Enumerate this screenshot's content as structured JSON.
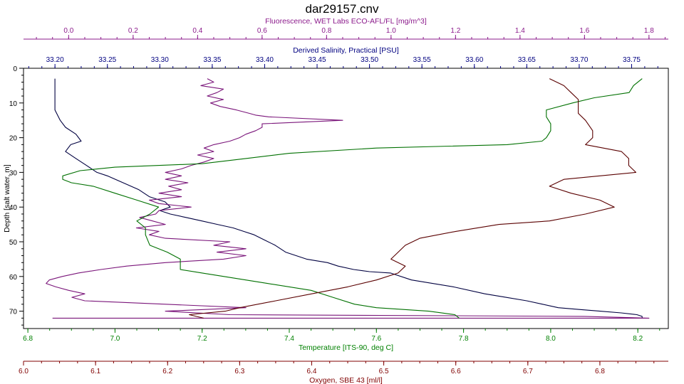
{
  "title": "dar29157.cnv",
  "chart_data": {
    "type": "line",
    "title": "dar29157.cnv",
    "grid": false,
    "y_axis": {
      "label": "Depth [salt water, m]",
      "range": [
        0,
        75
      ],
      "inverted": true,
      "ticks": [
        0,
        10,
        20,
        30,
        40,
        50,
        60,
        70
      ],
      "color": "#000000"
    },
    "x_axes": [
      {
        "id": "fluorescence",
        "label": "Fluorescence, WET Labs ECO-AFL/FL [mg/m^3]",
        "position": "top-outer",
        "range": [
          -0.14,
          1.86
        ],
        "ticks": [
          0.0,
          0.2,
          0.4,
          0.6,
          0.8,
          1.0,
          1.2,
          1.4,
          1.6,
          1.8
        ],
        "decimals": 1,
        "color": "#8b1a8b"
      },
      {
        "id": "salinity",
        "label": "Derived Salinity, Practical [PSU]",
        "position": "top-inner",
        "range": [
          33.17,
          33.785
        ],
        "ticks": [
          33.2,
          33.25,
          33.3,
          33.35,
          33.4,
          33.45,
          33.5,
          33.55,
          33.6,
          33.65,
          33.7,
          33.75
        ],
        "decimals": 2,
        "color": "#000080"
      },
      {
        "id": "temperature",
        "label": "Temperature [ITS-90, deg C]",
        "position": "bottom-inner",
        "range": [
          6.79,
          8.27
        ],
        "ticks": [
          6.8,
          7.0,
          7.2,
          7.4,
          7.6,
          7.8,
          8.0,
          8.2
        ],
        "decimals": 1,
        "color": "#008000"
      },
      {
        "id": "oxygen",
        "label": "Oxygen, SBE 43 [ml/l]",
        "position": "bottom-outer",
        "range": [
          6.0,
          6.895
        ],
        "ticks": [
          6.0,
          6.1,
          6.2,
          6.3,
          6.4,
          6.5,
          6.6,
          6.7,
          6.8
        ],
        "decimals": 1,
        "color": "#800000"
      }
    ],
    "series": [
      {
        "axis": "salinity",
        "color": "#000040",
        "points": [
          [
            33.2,
            3
          ],
          [
            33.2,
            8
          ],
          [
            33.2,
            12
          ],
          [
            33.205,
            15
          ],
          [
            33.21,
            17
          ],
          [
            33.22,
            19
          ],
          [
            33.225,
            21
          ],
          [
            33.215,
            22
          ],
          [
            33.21,
            24
          ],
          [
            33.22,
            26
          ],
          [
            33.23,
            28
          ],
          [
            33.24,
            30
          ],
          [
            33.25,
            31
          ],
          [
            33.265,
            33
          ],
          [
            33.28,
            35
          ],
          [
            33.29,
            37
          ],
          [
            33.305,
            38.5
          ],
          [
            33.31,
            40
          ],
          [
            33.3,
            41
          ],
          [
            33.31,
            42
          ],
          [
            33.325,
            43
          ],
          [
            33.34,
            44
          ],
          [
            33.355,
            45
          ],
          [
            33.37,
            46
          ],
          [
            33.38,
            47
          ],
          [
            33.39,
            48
          ],
          [
            33.4,
            49.5
          ],
          [
            33.41,
            51
          ],
          [
            33.42,
            53
          ],
          [
            33.44,
            55
          ],
          [
            33.46,
            56
          ],
          [
            33.47,
            57
          ],
          [
            33.485,
            58
          ],
          [
            33.5,
            58.6
          ],
          [
            33.52,
            59
          ],
          [
            33.54,
            61
          ],
          [
            33.58,
            63
          ],
          [
            33.61,
            65
          ],
          [
            33.63,
            66
          ],
          [
            33.65,
            67
          ],
          [
            33.665,
            68
          ],
          [
            33.68,
            69
          ],
          [
            33.7,
            69.5
          ],
          [
            33.72,
            70
          ],
          [
            33.74,
            70.5
          ],
          [
            33.755,
            71
          ],
          [
            33.76,
            71.5
          ],
          [
            33.76,
            72
          ]
        ]
      },
      {
        "axis": "fluorescence",
        "color": "#7a157a",
        "points": [
          [
            0.43,
            3
          ],
          [
            0.45,
            4
          ],
          [
            0.41,
            5
          ],
          [
            0.48,
            6
          ],
          [
            0.46,
            7
          ],
          [
            0.43,
            8
          ],
          [
            0.48,
            9
          ],
          [
            0.44,
            10
          ],
          [
            0.47,
            11
          ],
          [
            0.52,
            12
          ],
          [
            0.56,
            13
          ],
          [
            0.58,
            13.5
          ],
          [
            0.62,
            14
          ],
          [
            0.85,
            15
          ],
          [
            0.6,
            16
          ],
          [
            0.6,
            17
          ],
          [
            0.58,
            18
          ],
          [
            0.55,
            19
          ],
          [
            0.53,
            20
          ],
          [
            0.5,
            21
          ],
          [
            0.45,
            22
          ],
          [
            0.42,
            23
          ],
          [
            0.45,
            24
          ],
          [
            0.4,
            25
          ],
          [
            0.45,
            26
          ],
          [
            0.42,
            27
          ],
          [
            0.38,
            28
          ],
          [
            0.35,
            29
          ],
          [
            0.3,
            30
          ],
          [
            0.35,
            31
          ],
          [
            0.3,
            32
          ],
          [
            0.37,
            33
          ],
          [
            0.31,
            34
          ],
          [
            0.35,
            35
          ],
          [
            0.28,
            36
          ],
          [
            0.35,
            37
          ],
          [
            0.25,
            38
          ],
          [
            0.28,
            39
          ],
          [
            0.38,
            40
          ],
          [
            0.28,
            41
          ],
          [
            0.27,
            42
          ],
          [
            0.22,
            43
          ],
          [
            0.26,
            44
          ],
          [
            0.3,
            45
          ],
          [
            0.21,
            46
          ],
          [
            0.28,
            47
          ],
          [
            0.25,
            48
          ],
          [
            0.3,
            49
          ],
          [
            0.5,
            50
          ],
          [
            0.45,
            51
          ],
          [
            0.55,
            52
          ],
          [
            0.46,
            53
          ],
          [
            0.55,
            54
          ],
          [
            0.48,
            55
          ],
          [
            0.3,
            56
          ],
          [
            0.18,
            57
          ],
          [
            0.1,
            58
          ],
          [
            0.03,
            59
          ],
          [
            -0.02,
            60
          ],
          [
            -0.06,
            61
          ],
          [
            -0.07,
            62
          ],
          [
            -0.04,
            63
          ],
          [
            0.0,
            64
          ],
          [
            0.05,
            65
          ],
          [
            0.01,
            66
          ],
          [
            0.05,
            67
          ],
          [
            0.3,
            68
          ],
          [
            0.55,
            69
          ],
          [
            0.3,
            70
          ],
          [
            0.5,
            71
          ],
          [
            1.6,
            71.5
          ],
          [
            1.8,
            72
          ],
          [
            -0.05,
            72
          ]
        ]
      },
      {
        "axis": "temperature",
        "color": "#007000",
        "points": [
          [
            8.21,
            3
          ],
          [
            8.19,
            5
          ],
          [
            8.18,
            7
          ],
          [
            8.1,
            8.5
          ],
          [
            8.05,
            10
          ],
          [
            7.99,
            12
          ],
          [
            7.99,
            14
          ],
          [
            8.0,
            16
          ],
          [
            8.0,
            18
          ],
          [
            7.99,
            20
          ],
          [
            7.98,
            21
          ],
          [
            7.9,
            22
          ],
          [
            7.6,
            23
          ],
          [
            7.4,
            24.5
          ],
          [
            7.3,
            26
          ],
          [
            7.2,
            27.5
          ],
          [
            7.0,
            28.5
          ],
          [
            6.92,
            29.5
          ],
          [
            6.88,
            31
          ],
          [
            6.88,
            32
          ],
          [
            6.9,
            33
          ],
          [
            6.95,
            34
          ],
          [
            7.0,
            36
          ],
          [
            7.05,
            38
          ],
          [
            7.1,
            40
          ],
          [
            7.08,
            42
          ],
          [
            7.05,
            44
          ],
          [
            7.07,
            46
          ],
          [
            7.07,
            48
          ],
          [
            7.08,
            51
          ],
          [
            7.12,
            53
          ],
          [
            7.15,
            55
          ],
          [
            7.15,
            57
          ],
          [
            7.15,
            58
          ],
          [
            7.2,
            59
          ],
          [
            7.25,
            60
          ],
          [
            7.35,
            62
          ],
          [
            7.45,
            64
          ],
          [
            7.5,
            66
          ],
          [
            7.55,
            68
          ],
          [
            7.6,
            69
          ],
          [
            7.72,
            70
          ],
          [
            7.78,
            71
          ],
          [
            7.79,
            72
          ]
        ]
      },
      {
        "axis": "oxygen",
        "color": "#5a0000",
        "points": [
          [
            6.73,
            3
          ],
          [
            6.75,
            5
          ],
          [
            6.76,
            7
          ],
          [
            6.77,
            9
          ],
          [
            6.77,
            11
          ],
          [
            6.77,
            13
          ],
          [
            6.78,
            15
          ],
          [
            6.79,
            18
          ],
          [
            6.79,
            20
          ],
          [
            6.78,
            22
          ],
          [
            6.83,
            24
          ],
          [
            6.84,
            26
          ],
          [
            6.84,
            28
          ],
          [
            6.85,
            30
          ],
          [
            6.8,
            31
          ],
          [
            6.75,
            32
          ],
          [
            6.73,
            34
          ],
          [
            6.76,
            36
          ],
          [
            6.8,
            38
          ],
          [
            6.82,
            40
          ],
          [
            6.78,
            42
          ],
          [
            6.73,
            44
          ],
          [
            6.66,
            45
          ],
          [
            6.6,
            47
          ],
          [
            6.55,
            49
          ],
          [
            6.53,
            51
          ],
          [
            6.52,
            53
          ],
          [
            6.51,
            55
          ],
          [
            6.53,
            57
          ],
          [
            6.52,
            59
          ],
          [
            6.49,
            61
          ],
          [
            6.45,
            63
          ],
          [
            6.4,
            65
          ],
          [
            6.35,
            67
          ],
          [
            6.3,
            69
          ],
          [
            6.28,
            70
          ],
          [
            6.23,
            71
          ],
          [
            6.25,
            72
          ]
        ]
      }
    ]
  }
}
